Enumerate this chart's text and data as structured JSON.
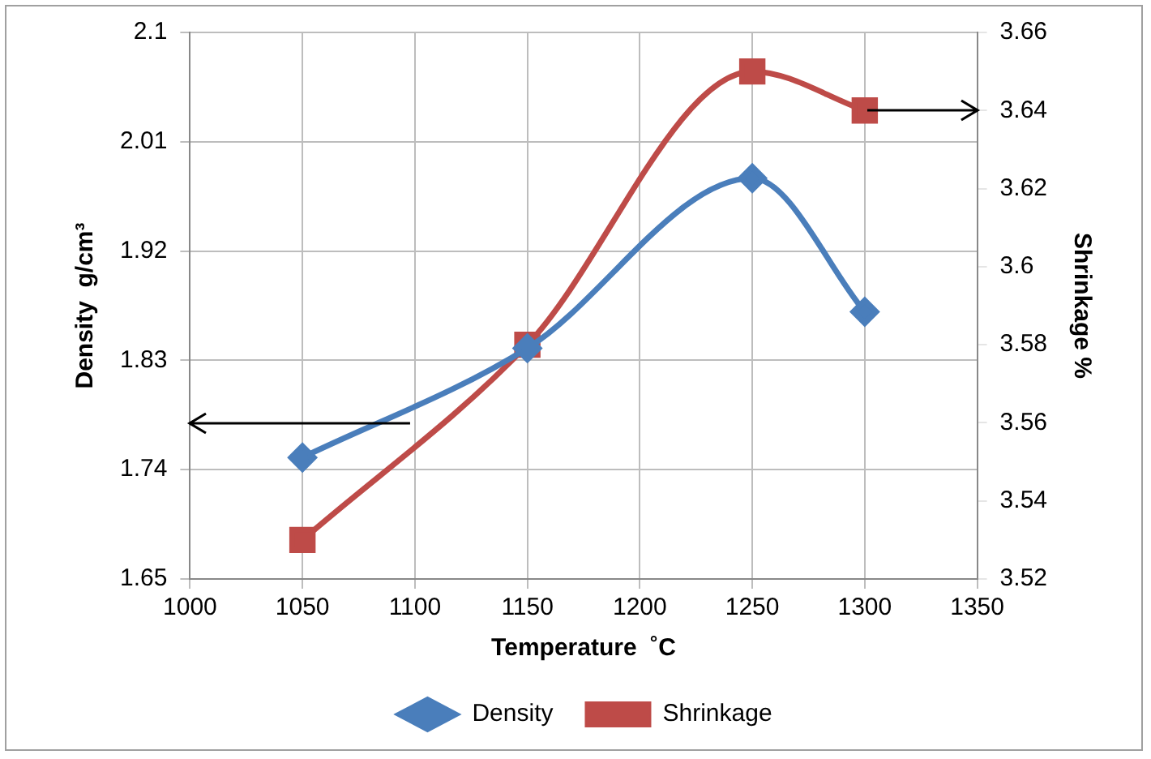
{
  "chart_data": {
    "type": "line",
    "xlabel": "Temperature  ˚C",
    "ylabel": "Density  g/cm³",
    "y2label": "Shrinkage %",
    "x": [
      1050,
      1150,
      1250,
      1300
    ],
    "series": [
      {
        "name": "Density",
        "color": "#4a7ebb",
        "marker": "diamond",
        "values": [
          1.75,
          1.84,
          1.98,
          1.87
        ]
      },
      {
        "name": "Shrinkage",
        "color": "#be4b48",
        "marker": "square",
        "axis": "y2",
        "values": [
          3.53,
          3.58,
          3.65,
          3.64
        ]
      }
    ],
    "xlim": [
      1000,
      1350
    ],
    "xticks": [
      1000,
      1050,
      1100,
      1150,
      1200,
      1250,
      1300,
      1350
    ],
    "ylim": [
      1.65,
      2.1
    ],
    "yticks": [
      1.65,
      1.74,
      1.83,
      1.92,
      2.01,
      2.1
    ],
    "y2lim": [
      3.52,
      3.66
    ],
    "y2ticks": [
      3.52,
      3.54,
      3.56,
      3.58,
      3.6,
      3.62,
      3.64,
      3.66
    ],
    "grid": true,
    "legend": "bottom",
    "line_style": "solid"
  }
}
